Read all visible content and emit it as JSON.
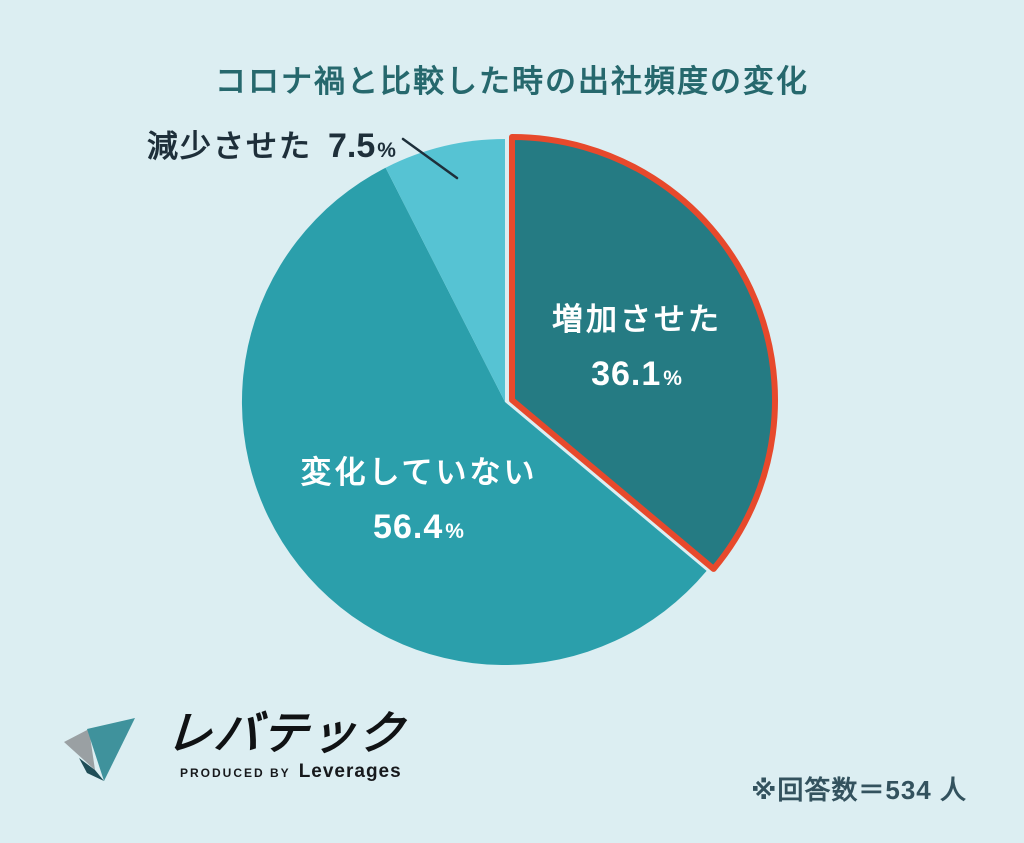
{
  "page": {
    "background": "#dceef2"
  },
  "title": {
    "text": "コロナ禍と比較した時の出社頻度の変化",
    "color": "#26686d"
  },
  "units": {
    "percent": "%"
  },
  "chart_data": {
    "type": "pie",
    "title": "コロナ禍と比較した時の出社頻度の変化",
    "start_angle": "12 o'clock, clockwise",
    "legend_position": "none",
    "slices": [
      {
        "label": "増加させた",
        "value": 36.1,
        "display_pct": "36.1",
        "color": "#257b83",
        "text_color": "#ffffff",
        "highlight_stroke": "#e7492c",
        "exploded": true
      },
      {
        "label": "変化していない",
        "value": 56.4,
        "display_pct": "56.4",
        "color": "#2b9fab",
        "text_color": "#ffffff"
      },
      {
        "label": "減少させた",
        "value": 7.5,
        "display_pct": "7.5",
        "color": "#56c3d3",
        "text_color": "#1e2f3a",
        "callout": true
      }
    ],
    "note": "※回答数＝534 人"
  },
  "footer": {
    "note": "※回答数＝534 人",
    "logo": {
      "brand": "レバテック",
      "produced_by": "PRODUCED BY",
      "company": "Leverages",
      "mark_colors": {
        "teal": "#3f929c",
        "gray": "#9aa0a3",
        "shadow": "#1f4d57"
      }
    }
  }
}
